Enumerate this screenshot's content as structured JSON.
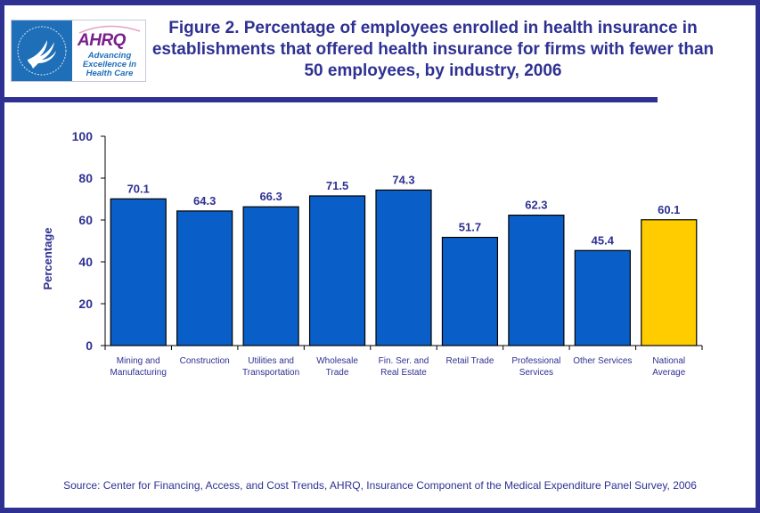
{
  "header": {
    "logo_hhs_label": "Department of Health & Human Services USA",
    "logo_ahrq_word": "AHRQ",
    "logo_ahrq_tagline": [
      "Advancing",
      "Excellence in",
      "Health Care"
    ],
    "title": "Figure 2. Percentage of employees enrolled in health insurance in establishments that offered health insurance for firms with fewer than 50 employees, by industry, 2006"
  },
  "colors": {
    "frame": "#2e3192",
    "text": "#2e3192",
    "bar_default": "#0a5ec8",
    "bar_highlight": "#ffcc00"
  },
  "chart_data": {
    "type": "bar",
    "title": "Figure 2. Percentage of employees enrolled in health insurance in establishments that offered health insurance for firms with fewer than 50 employees, by industry, 2006",
    "xlabel": "",
    "ylabel": "Percentage",
    "ylim": [
      0,
      100
    ],
    "yticks": [
      0,
      20,
      40,
      60,
      80,
      100
    ],
    "grid": false,
    "legend": "none",
    "categories": [
      [
        "Mining and",
        "Manufacturing"
      ],
      [
        "Construction"
      ],
      [
        "Utilities and",
        "Transportation"
      ],
      [
        "Wholesale",
        "Trade"
      ],
      [
        "Fin. Ser. and",
        "Real Estate"
      ],
      [
        "Retail Trade"
      ],
      [
        "Professional",
        "Services"
      ],
      [
        "Other Services"
      ],
      [
        "National",
        "Average"
      ]
    ],
    "values": [
      70.1,
      64.3,
      66.3,
      71.5,
      74.3,
      51.7,
      62.3,
      45.4,
      60.1
    ],
    "data_labels": [
      "70.1",
      "64.3",
      "66.3",
      "71.5",
      "74.3",
      "51.7",
      "62.3",
      "45.4",
      "60.1"
    ],
    "highlight_index": 8
  },
  "footer": {
    "source": "Source: Center for Financing, Access, and Cost Trends, AHRQ, Insurance Component of the Medical Expenditure Panel Survey, 2006"
  }
}
